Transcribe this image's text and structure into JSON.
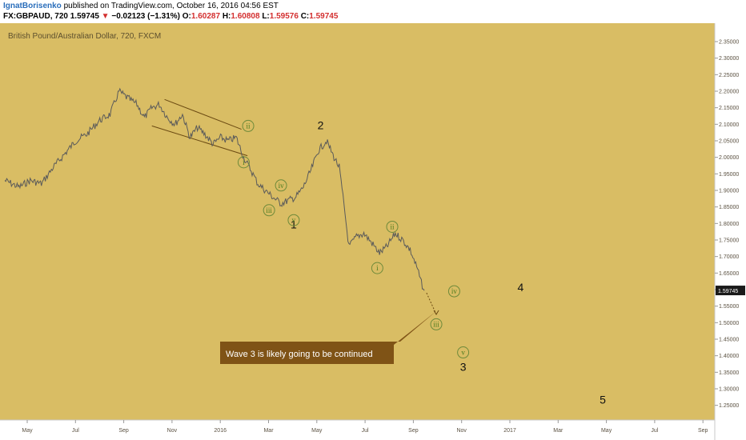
{
  "header": {
    "author": "IgnatBorisenko",
    "published_text": " published on TradingView.com, October 16, 2016 04:56 EST",
    "symbol": "FX:GBPAUD, 720",
    "last": "1.59745",
    "change_arrow": "▼",
    "change": "−0.02123 (−1.31%)",
    "o_label": "O:",
    "o_value": "1.60287",
    "h_label": "H:",
    "h_value": "1.60808",
    "l_label": "L:",
    "l_value": "1.59576",
    "c_label": "C:",
    "c_value": "1.59745"
  },
  "chart_data": {
    "type": "line",
    "title": "British Pound/Australian Dollar, 720, FXCM",
    "x_ticks": [
      "May",
      "Jul",
      "Sep",
      "Nov",
      "2016",
      "Mar",
      "May",
      "Jul",
      "Sep",
      "Nov",
      "2017",
      "Mar",
      "May",
      "Jul",
      "Sep"
    ],
    "y_ticks": [
      "2.35000",
      "2.30000",
      "2.25000",
      "2.20000",
      "2.15000",
      "2.10000",
      "2.05000",
      "2.00000",
      "1.95000",
      "1.90000",
      "1.85000",
      "1.80000",
      "1.75000",
      "1.70000",
      "1.65000",
      "1.60000",
      "1.55000",
      "1.50000",
      "1.45000",
      "1.40000",
      "1.35000",
      "1.30000",
      "1.25000"
    ],
    "ylim": [
      1.22,
      2.38
    ],
    "last_price_label": "1.59745",
    "background": "#d9bd64",
    "line_color": "#5a5a5a",
    "series": [
      {
        "x": [
          "2015-04-01",
          "2015-04-20",
          "2015-05-05",
          "2015-05-20",
          "2015-06-05",
          "2015-06-20",
          "2015-07-05",
          "2015-07-20",
          "2015-08-05",
          "2015-08-20",
          "2015-09-01",
          "2015-09-12",
          "2015-09-25",
          "2015-10-05",
          "2015-10-15",
          "2015-10-25",
          "2015-11-05",
          "2015-11-15",
          "2015-11-25",
          "2015-12-05",
          "2015-12-15",
          "2015-12-25",
          "2016-01-05",
          "2016-01-15",
          "2016-01-25",
          "2016-02-05",
          "2016-02-15",
          "2016-02-25",
          "2016-03-05",
          "2016-03-15",
          "2016-03-25",
          "2016-04-05",
          "2016-04-15",
          "2016-04-25",
          "2016-05-05",
          "2016-05-15",
          "2016-05-25",
          "2016-06-05",
          "2016-06-15",
          "2016-06-22",
          "2016-06-27",
          "2016-07-05",
          "2016-07-15",
          "2016-07-25",
          "2016-08-05",
          "2016-08-15",
          "2016-08-25",
          "2016-09-05",
          "2016-09-15",
          "2016-09-25",
          "2016-10-05",
          "2016-10-10",
          "2016-10-14"
        ],
        "values": [
          1.93,
          1.91,
          1.93,
          1.92,
          1.97,
          2.01,
          2.05,
          2.07,
          2.11,
          2.13,
          2.2,
          2.18,
          2.16,
          2.12,
          2.15,
          2.16,
          2.12,
          2.1,
          2.13,
          2.06,
          2.09,
          2.07,
          2.04,
          2.06,
          2.05,
          2.06,
          2.0,
          1.96,
          1.92,
          1.9,
          1.88,
          1.86,
          1.87,
          1.88,
          1.91,
          1.96,
          2.02,
          2.05,
          2.0,
          1.97,
          1.88,
          1.73,
          1.76,
          1.77,
          1.74,
          1.71,
          1.73,
          1.77,
          1.75,
          1.72,
          1.66,
          1.62,
          1.597
        ]
      }
    ],
    "trendlines": [
      {
        "x1": "2015-11-01",
        "y1": 2.175,
        "x2": "2016-02-12",
        "y2": 2.085
      },
      {
        "x1": "2015-10-15",
        "y1": 2.095,
        "x2": "2016-02-20",
        "y2": 2.005
      }
    ],
    "projection": {
      "x1": "2016-10-17",
      "y1": 1.59,
      "x2": "2016-10-30",
      "y2": 1.525
    },
    "wave_labels": [
      {
        "text": "1",
        "x": "2016-04-22",
        "y": 1.785,
        "style": "number"
      },
      {
        "text": "2",
        "x": "2016-05-28",
        "y": 2.085,
        "style": "number"
      },
      {
        "text": "3",
        "x": "2016-12-05",
        "y": 1.355,
        "style": "number"
      },
      {
        "text": "4",
        "x": "2017-02-20",
        "y": 1.595,
        "style": "number"
      },
      {
        "text": "5",
        "x": "2017-06-10",
        "y": 1.255,
        "style": "number"
      },
      {
        "text": "i",
        "x": "2016-02-15",
        "y": 1.985,
        "style": "circled"
      },
      {
        "text": "ii",
        "x": "2016-02-21",
        "y": 2.095,
        "style": "circled"
      },
      {
        "text": "iii",
        "x": "2016-03-20",
        "y": 1.84,
        "style": "circled"
      },
      {
        "text": "iv",
        "x": "2016-04-05",
        "y": 1.915,
        "style": "circled"
      },
      {
        "text": "v",
        "x": "2016-04-22",
        "y": 1.81,
        "style": "circled"
      },
      {
        "text": "i",
        "x": "2016-08-12",
        "y": 1.665,
        "style": "circled"
      },
      {
        "text": "ii",
        "x": "2016-09-01",
        "y": 1.79,
        "style": "circled"
      },
      {
        "text": "iii",
        "x": "2016-10-30",
        "y": 1.495,
        "style": "circled"
      },
      {
        "text": "iv",
        "x": "2016-11-23",
        "y": 1.595,
        "style": "circled"
      },
      {
        "text": "v",
        "x": "2016-12-05",
        "y": 1.41,
        "style": "circled"
      }
    ],
    "annotation": {
      "text": "Wave 3 is likely going to be continued",
      "color": "#7f5316",
      "text_color": "#ffffff"
    }
  }
}
